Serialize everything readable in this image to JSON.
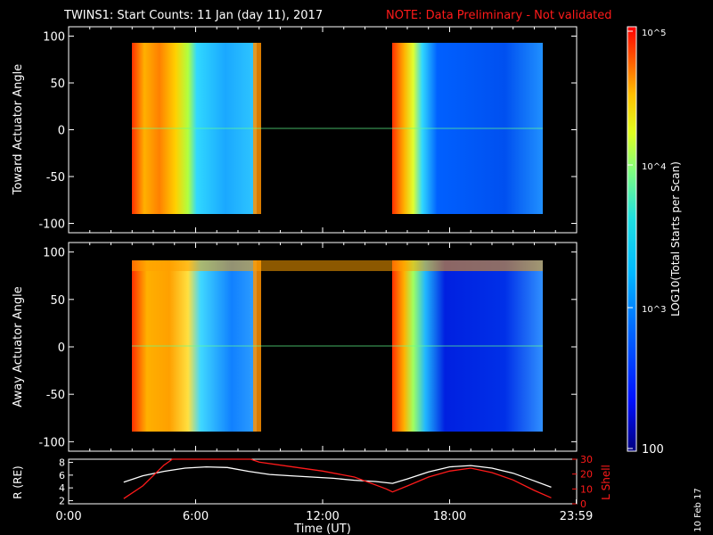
{
  "header": {
    "title": "TWINS1: Start Counts: 11 Jan (day  11), 2017",
    "note": "NOTE: Data Preliminary - Not validated",
    "note_color": "#ff1a1a"
  },
  "footer": {
    "date_stamp": "10 Feb 17"
  },
  "colorbar": {
    "label": "LOG10(Total Starts per Scan)",
    "ticks": [
      "10^5",
      "10^4",
      "10^3",
      "100"
    ]
  },
  "chart_data": [
    {
      "type": "heatmap",
      "panel": "toward",
      "ylabel": "Toward Actuator Angle",
      "ylim": [
        -110,
        110
      ],
      "yticks": [
        100,
        50,
        0,
        -50,
        -100
      ],
      "xlim": [
        0,
        24
      ],
      "color_scale": "log",
      "zlim": [
        100,
        100000
      ],
      "data_blocks": [
        {
          "x_range": [
            2.7,
            8.85
          ],
          "y_range": [
            -88,
            90
          ],
          "description_values": {
            "low_time_edge_counts": 30000,
            "high_time_edge_counts": 1000
          }
        },
        {
          "x_range": [
            15.1,
            22.7
          ],
          "y_range": [
            -88,
            90
          ],
          "description_values": {
            "low_time_edge_counts": 30000,
            "center_counts": 400
          }
        }
      ]
    },
    {
      "type": "heatmap",
      "panel": "away",
      "ylabel": "Away Actuator Angle",
      "ylim": [
        -110,
        110
      ],
      "yticks": [
        100,
        50,
        0,
        -50,
        -100
      ],
      "xlim": [
        0,
        24
      ],
      "color_scale": "log",
      "zlim": [
        100,
        100000
      ],
      "data_blocks": [
        {
          "x_range": [
            2.7,
            8.85
          ],
          "y_range": [
            -88,
            90
          ]
        },
        {
          "x_range": [
            15.1,
            22.7
          ],
          "y_range": [
            -88,
            90
          ]
        }
      ]
    },
    {
      "type": "line",
      "panel": "orbit",
      "xlabel": "Time (UT)",
      "xticks": [
        "0:00",
        "6:00",
        "12:00",
        "18:00",
        "23:59"
      ],
      "xlim": [
        0,
        24
      ],
      "left_axis": {
        "label": "R (RE)",
        "ticks": [
          8,
          6,
          4,
          2
        ],
        "ylim": [
          1.5,
          8.5
        ]
      },
      "right_axis": {
        "label": "L Shell",
        "ticks": [
          30,
          20,
          10,
          0
        ],
        "ylim": [
          0,
          30
        ],
        "color": "#ff1a1a"
      },
      "series": [
        {
          "axis": "left",
          "color": "#ffffff",
          "x": [
            2.6,
            3.5,
            4.5,
            5.5,
            6.5,
            7.5,
            8.5,
            9.5,
            10.5,
            11.5,
            12.5,
            13.5,
            14.5,
            15.3,
            16.0,
            17.0,
            18.0,
            19.0,
            20.0,
            21.0,
            22.0,
            22.8
          ],
          "y": [
            4.9,
            5.9,
            6.6,
            7.1,
            7.3,
            7.2,
            6.6,
            6.1,
            5.9,
            5.7,
            5.5,
            5.2,
            5.0,
            4.7,
            5.4,
            6.5,
            7.3,
            7.5,
            7.1,
            6.3,
            5.1,
            4.1
          ]
        },
        {
          "axis": "right",
          "color": "#ff1a1a",
          "x": [
            2.6,
            3.5,
            4.5,
            4.9,
            8.6,
            9.0,
            10.5,
            12.0,
            13.5,
            15.0,
            15.3,
            16.0,
            17.0,
            18.0,
            19.0,
            20.0,
            21.0,
            22.0,
            22.8
          ],
          "y": [
            3.5,
            12,
            26,
            30,
            30,
            28,
            25,
            22,
            18,
            10,
            8,
            12,
            18,
            22,
            24,
            21,
            16,
            9,
            4
          ]
        }
      ]
    }
  ]
}
